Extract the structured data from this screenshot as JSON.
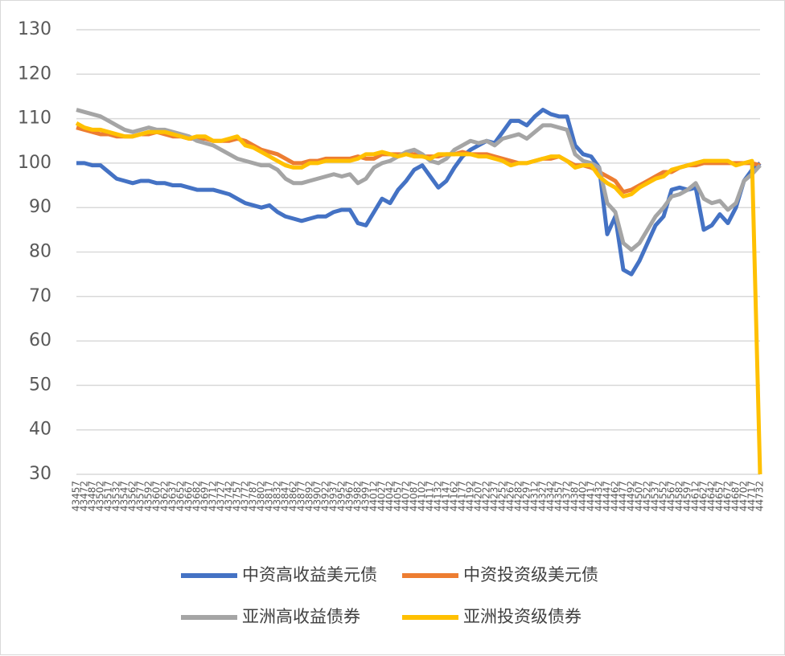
{
  "chart_data": {
    "type": "line",
    "x": [
      43457,
      43472,
      43487,
      43502,
      43517,
      43532,
      43547,
      43562,
      43577,
      43592,
      43607,
      43622,
      43637,
      43652,
      43667,
      43682,
      43697,
      43712,
      43727,
      43742,
      43757,
      43772,
      43787,
      43802,
      43817,
      43832,
      43847,
      43862,
      43877,
      43892,
      43907,
      43922,
      43937,
      43952,
      43967,
      43982,
      43997,
      44012,
      44027,
      44042,
      44057,
      44072,
      44087,
      44102,
      44117,
      44132,
      44147,
      44162,
      44177,
      44192,
      44207,
      44222,
      44237,
      44252,
      44267,
      44282,
      44297,
      44312,
      44327,
      44342,
      44357,
      44372,
      44387,
      44402,
      44417,
      44432,
      44447,
      44462,
      44477,
      44492,
      44507,
      44522,
      44537,
      44552,
      44567,
      44582,
      44597,
      44612,
      44627,
      44642,
      44657,
      44672,
      44687,
      44702,
      44717,
      44732
    ],
    "xlim": [
      43457,
      44732
    ],
    "ylim": [
      30,
      130
    ],
    "yticks": [
      30,
      40,
      50,
      60,
      70,
      80,
      90,
      100,
      110,
      120,
      130
    ],
    "grid": true,
    "series": [
      {
        "name": "中资高收益美元债",
        "color": "#4472c4",
        "values": [
          100,
          100,
          99.5,
          99.5,
          98,
          96.5,
          96,
          95.5,
          96,
          96,
          95.5,
          95.5,
          95,
          95,
          94.5,
          94,
          94,
          94,
          93.5,
          93,
          92,
          91,
          90.5,
          90,
          90.5,
          89,
          88,
          87.5,
          87,
          87.5,
          88,
          88,
          89,
          89.5,
          89.5,
          86.5,
          86,
          89,
          92,
          91,
          94,
          96,
          98.5,
          99.5,
          97,
          94.5,
          96,
          99,
          101.5,
          103,
          104,
          105,
          104.5,
          107,
          109.5,
          109.5,
          108.5,
          110.5,
          112,
          111,
          110.5,
          110.5,
          104,
          102,
          101.5,
          99,
          84,
          88,
          76,
          75,
          78,
          82,
          86,
          88,
          94,
          94.5,
          94,
          94.5,
          85,
          86,
          88.5,
          86.5,
          90,
          96,
          98.5,
          100
        ]
      },
      {
        "name": "中资投资级美元债",
        "color": "#ed7d31",
        "values": [
          108,
          107.5,
          107,
          106.5,
          106.5,
          106,
          106,
          106,
          106.5,
          106.5,
          107,
          106.5,
          106,
          106,
          105.5,
          105.5,
          105.5,
          105,
          105,
          105,
          105.5,
          105,
          104,
          103,
          102.5,
          102,
          101,
          100,
          100,
          100.5,
          100.5,
          101,
          101,
          101,
          101,
          101.5,
          101,
          101,
          102,
          102,
          102,
          102,
          102,
          101.5,
          101.5,
          101.5,
          102,
          102,
          102.5,
          102,
          102,
          102,
          101.5,
          101,
          100.5,
          100,
          100,
          100.5,
          101,
          101,
          101.5,
          100.5,
          99.5,
          99.5,
          99,
          98,
          97,
          96,
          93.5,
          94,
          95,
          96,
          97,
          98,
          98,
          99,
          99.5,
          99.5,
          100,
          100,
          100,
          100,
          100,
          100,
          100,
          99.5
        ]
      },
      {
        "name": "亚洲高收益债券",
        "color": "#a5a5a5",
        "values": [
          112,
          111.5,
          111,
          110.5,
          109.5,
          108.5,
          107.5,
          107,
          107.5,
          108,
          107.5,
          107.5,
          107,
          106.5,
          106,
          105,
          104.5,
          104,
          103,
          102,
          101,
          100.5,
          100,
          99.5,
          99.5,
          98.5,
          96.5,
          95.5,
          95.5,
          96,
          96.5,
          97,
          97.5,
          97,
          97.5,
          95.5,
          96.5,
          99,
          100,
          100.5,
          101.5,
          102.5,
          103,
          102,
          100.5,
          100,
          101,
          103,
          104,
          105,
          104.5,
          105,
          104,
          105.5,
          106,
          106.5,
          105.5,
          107,
          108.5,
          108.5,
          108,
          107.5,
          102,
          100.5,
          100,
          99,
          91,
          89,
          82,
          80.5,
          82,
          85,
          88,
          90,
          92.5,
          93,
          94,
          95.5,
          92,
          91,
          91.5,
          89.5,
          91,
          96,
          97.5,
          99.5
        ]
      },
      {
        "name": "亚洲投资级债券",
        "color": "#ffc000",
        "values": [
          109,
          108,
          107.5,
          107.5,
          107,
          106.5,
          106,
          106,
          106.5,
          107,
          107,
          107,
          106.5,
          106,
          105.5,
          106,
          106,
          105,
          105,
          105.5,
          106,
          104,
          103.5,
          102.5,
          101.5,
          100.5,
          99.5,
          99,
          99,
          100,
          100,
          100.5,
          100.5,
          100.5,
          100.5,
          101,
          102,
          102,
          102.5,
          102,
          101.5,
          102,
          101.5,
          101.5,
          101,
          102,
          102,
          102,
          102,
          102,
          101.5,
          101.5,
          101,
          100.5,
          99.5,
          100,
          100,
          100.5,
          101,
          101.5,
          101.5,
          100.5,
          99,
          99.5,
          99.5,
          97,
          95.5,
          94.5,
          92.5,
          93,
          94.5,
          95.5,
          96.5,
          97,
          98.5,
          99,
          99.5,
          100,
          100.5,
          100.5,
          100.5,
          100.5,
          99.5,
          100,
          100.5,
          30
        ]
      }
    ]
  }
}
